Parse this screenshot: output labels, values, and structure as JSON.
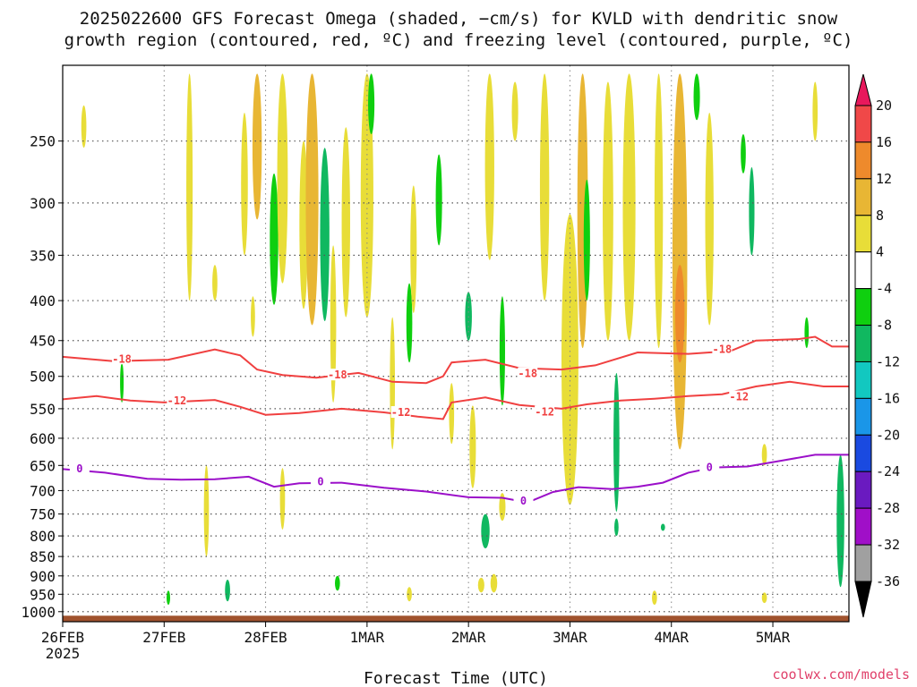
{
  "title_line1": "2025022600 GFS Forecast Omega (shaded, −cm/s) for KVLD with dendritic snow",
  "title_line2": "growth region (contoured, red, ºC) and freezing level (contoured, purple, ºC)",
  "xlabel": "Forecast Time (UTC)",
  "credit": "coolwx.com/models",
  "colors": {
    "ground": "#a0522d",
    "dgz": "#f04040",
    "freezing": "#9b0fc9",
    "grid": "#555555"
  },
  "chart_data": {
    "type": "heatmap",
    "x_ticks": [
      {
        "label": "26FEB",
        "sub": "2025",
        "t": 0
      },
      {
        "label": "27FEB",
        "t": 24
      },
      {
        "label": "28FEB",
        "t": 48
      },
      {
        "label": "1MAR",
        "t": 72
      },
      {
        "label": "2MAR",
        "t": 96
      },
      {
        "label": "3MAR",
        "t": 120
      },
      {
        "label": "4MAR",
        "t": 144
      },
      {
        "label": "5MAR",
        "t": 168
      }
    ],
    "x_range_hours": [
      0,
      186
    ],
    "y_ticks": [
      250,
      300,
      350,
      400,
      450,
      500,
      550,
      600,
      650,
      700,
      750,
      800,
      850,
      900,
      950,
      1000
    ],
    "y_range_hPa": [
      200,
      1030
    ],
    "y_scale": "log",
    "colorbar": {
      "labels": [
        "20",
        "16",
        "12",
        "8",
        "4",
        "-4",
        "-8",
        "-12",
        "-16",
        "-20",
        "-24",
        "-28",
        "-32",
        "-36"
      ],
      "colors": [
        "#e8185c",
        "#f04848",
        "#ee8a2c",
        "#e8b634",
        "#e8dd38",
        "#ffffff",
        "#0fcf0f",
        "#10b860",
        "#12c8c0",
        "#1a96e8",
        "#1a4ae0",
        "#6a1ac0",
        "#a00fc8",
        "#a0a0a0",
        "#000000"
      ]
    },
    "omega_blobs": [
      {
        "t": 5,
        "p": 240,
        "w": 1.2,
        "h": 30,
        "v": 6
      },
      {
        "t": 30,
        "p": 280,
        "w": 1.5,
        "h": 240,
        "v": 6
      },
      {
        "t": 36,
        "p": 380,
        "w": 1.2,
        "h": 40,
        "v": 6
      },
      {
        "t": 43,
        "p": 290,
        "w": 1.6,
        "h": 120,
        "v": 6
      },
      {
        "t": 45,
        "p": 420,
        "w": 1,
        "h": 50,
        "v": 6
      },
      {
        "t": 46,
        "p": 260,
        "w": 2.2,
        "h": 110,
        "v": 9
      },
      {
        "t": 50,
        "p": 340,
        "w": 2,
        "h": 130,
        "v": -6
      },
      {
        "t": 52,
        "p": 280,
        "w": 2.5,
        "h": 200,
        "v": 6
      },
      {
        "t": 52,
        "p": 720,
        "w": 1.2,
        "h": 130,
        "v": 6
      },
      {
        "t": 57,
        "p": 330,
        "w": 2,
        "h": 160,
        "v": 6
      },
      {
        "t": 59,
        "p": 300,
        "w": 3,
        "h": 260,
        "v": 8
      },
      {
        "t": 62,
        "p": 340,
        "w": 2.2,
        "h": 170,
        "v": -9
      },
      {
        "t": 64,
        "p": 440,
        "w": 1.4,
        "h": 200,
        "v": 6
      },
      {
        "t": 67,
        "p": 330,
        "w": 2,
        "h": 180,
        "v": 6
      },
      {
        "t": 72,
        "p": 290,
        "w": 3,
        "h": 260,
        "v": 6
      },
      {
        "t": 73,
        "p": 225,
        "w": 1.5,
        "h": 40,
        "v": -6
      },
      {
        "t": 78,
        "p": 520,
        "w": 1.2,
        "h": 200,
        "v": 6
      },
      {
        "t": 82,
        "p": 430,
        "w": 1.4,
        "h": 100,
        "v": -6
      },
      {
        "t": 83,
        "p": 350,
        "w": 1.5,
        "h": 130,
        "v": 6
      },
      {
        "t": 89,
        "p": 300,
        "w": 1.5,
        "h": 80,
        "v": -6
      },
      {
        "t": 92,
        "p": 560,
        "w": 1.2,
        "h": 100,
        "v": 6
      },
      {
        "t": 96,
        "p": 420,
        "w": 1.6,
        "h": 60,
        "v": -8
      },
      {
        "t": 97,
        "p": 620,
        "w": 1.5,
        "h": 150,
        "v": 6
      },
      {
        "t": 100,
        "p": 790,
        "w": 2,
        "h": 80,
        "v": -9
      },
      {
        "t": 99,
        "p": 925,
        "w": 1.5,
        "h": 40,
        "v": 6
      },
      {
        "t": 102,
        "p": 920,
        "w": 1.6,
        "h": 50,
        "v": 7
      },
      {
        "t": 101,
        "p": 280,
        "w": 2.2,
        "h": 150,
        "v": 6
      },
      {
        "t": 104,
        "p": 735,
        "w": 1.5,
        "h": 60,
        "v": 6
      },
      {
        "t": 104,
        "p": 470,
        "w": 1.3,
        "h": 150,
        "v": -7
      },
      {
        "t": 107,
        "p": 230,
        "w": 1.5,
        "h": 40,
        "v": 6
      },
      {
        "t": 114,
        "p": 300,
        "w": 2.2,
        "h": 200,
        "v": 6
      },
      {
        "t": 120,
        "p": 520,
        "w": 4,
        "h": 420,
        "v": 7
      },
      {
        "t": 123,
        "p": 320,
        "w": 2.5,
        "h": 280,
        "v": 10
      },
      {
        "t": 124,
        "p": 340,
        "w": 1.5,
        "h": 120,
        "v": -6
      },
      {
        "t": 129,
        "p": 330,
        "w": 2.5,
        "h": 240,
        "v": 6
      },
      {
        "t": 131,
        "p": 620,
        "w": 1.4,
        "h": 250,
        "v": -8
      },
      {
        "t": 134,
        "p": 300,
        "w": 3,
        "h": 300,
        "v": 6
      },
      {
        "t": 141,
        "p": 320,
        "w": 2,
        "h": 280,
        "v": 6
      },
      {
        "t": 146,
        "p": 380,
        "w": 3.5,
        "h": 480,
        "v": 8
      },
      {
        "t": 146,
        "p": 420,
        "w": 2.2,
        "h": 120,
        "v": 13
      },
      {
        "t": 150,
        "p": 220,
        "w": 1.5,
        "h": 30,
        "v": -6
      },
      {
        "t": 153,
        "p": 330,
        "w": 2,
        "h": 200,
        "v": 6
      },
      {
        "t": 161,
        "p": 260,
        "w": 1.2,
        "h": 30,
        "v": -7
      },
      {
        "t": 163,
        "p": 310,
        "w": 1.3,
        "h": 80,
        "v": -8
      },
      {
        "t": 166,
        "p": 630,
        "w": 1.2,
        "h": 40,
        "v": 6
      },
      {
        "t": 166,
        "p": 960,
        "w": 1.2,
        "h": 30,
        "v": 6
      },
      {
        "t": 176,
        "p": 440,
        "w": 1,
        "h": 40,
        "v": -6
      },
      {
        "t": 178,
        "p": 230,
        "w": 1.2,
        "h": 40,
        "v": 6
      },
      {
        "t": 184,
        "p": 780,
        "w": 1.8,
        "h": 300,
        "v": -10
      },
      {
        "t": 34,
        "p": 750,
        "w": 1.2,
        "h": 200,
        "v": 6
      },
      {
        "t": 25,
        "p": 960,
        "w": 0.8,
        "h": 40,
        "v": -6
      },
      {
        "t": 39,
        "p": 940,
        "w": 1.2,
        "h": 60,
        "v": -8
      },
      {
        "t": 65,
        "p": 920,
        "w": 1.2,
        "h": 40,
        "v": -6
      },
      {
        "t": 82,
        "p": 950,
        "w": 1.2,
        "h": 40,
        "v": 6
      },
      {
        "t": 140,
        "p": 960,
        "w": 1.2,
        "h": 40,
        "v": 6
      },
      {
        "t": 142,
        "p": 780,
        "w": 1,
        "h": 15,
        "v": -8
      },
      {
        "t": 131,
        "p": 780,
        "w": 1,
        "h": 40,
        "v": -8
      },
      {
        "t": 14,
        "p": 510,
        "w": 0.8,
        "h": 60,
        "v": -6
      }
    ],
    "dgz_contours": [
      {
        "label": "-18",
        "label_at": [
          [
            14,
            475
          ],
          [
            65,
            498
          ],
          [
            110,
            496
          ],
          [
            156,
            462
          ]
        ],
        "points": [
          [
            0,
            472
          ],
          [
            12,
            478
          ],
          [
            25,
            476
          ],
          [
            36,
            462
          ],
          [
            42,
            470
          ],
          [
            46,
            490
          ],
          [
            52,
            498
          ],
          [
            60,
            502
          ],
          [
            70,
            495
          ],
          [
            78,
            508
          ],
          [
            86,
            510
          ],
          [
            90,
            500
          ],
          [
            92,
            480
          ],
          [
            100,
            476
          ],
          [
            108,
            488
          ],
          [
            118,
            490
          ],
          [
            126,
            484
          ],
          [
            136,
            466
          ],
          [
            148,
            468
          ],
          [
            158,
            464
          ],
          [
            164,
            450
          ],
          [
            174,
            448
          ],
          [
            178,
            445
          ],
          [
            182,
            458
          ],
          [
            186,
            458
          ]
        ]
      },
      {
        "label": "-12",
        "label_at": [
          [
            27,
            537
          ],
          [
            80,
            556
          ],
          [
            114,
            555
          ],
          [
            160,
            531
          ]
        ],
        "points": [
          [
            0,
            535
          ],
          [
            8,
            530
          ],
          [
            16,
            537
          ],
          [
            24,
            540
          ],
          [
            36,
            536
          ],
          [
            42,
            547
          ],
          [
            48,
            560
          ],
          [
            56,
            557
          ],
          [
            66,
            550
          ],
          [
            76,
            556
          ],
          [
            84,
            563
          ],
          [
            90,
            567
          ],
          [
            92,
            540
          ],
          [
            100,
            532
          ],
          [
            108,
            544
          ],
          [
            118,
            550
          ],
          [
            124,
            543
          ],
          [
            132,
            537
          ],
          [
            140,
            534
          ],
          [
            148,
            530
          ],
          [
            156,
            527
          ],
          [
            164,
            515
          ],
          [
            172,
            508
          ],
          [
            180,
            515
          ],
          [
            186,
            515
          ]
        ]
      }
    ],
    "freezing_contour": {
      "label": "0",
      "label_at": [
        [
          4,
          656
        ],
        [
          61,
          682
        ],
        [
          109,
          722
        ],
        [
          153,
          654
        ]
      ],
      "points": [
        [
          0,
          657
        ],
        [
          10,
          664
        ],
        [
          20,
          676
        ],
        [
          28,
          678
        ],
        [
          36,
          677
        ],
        [
          44,
          672
        ],
        [
          50,
          692
        ],
        [
          56,
          685
        ],
        [
          66,
          684
        ],
        [
          76,
          694
        ],
        [
          86,
          702
        ],
        [
          96,
          714
        ],
        [
          104,
          715
        ],
        [
          110,
          725
        ],
        [
          116,
          703
        ],
        [
          122,
          693
        ],
        [
          130,
          697
        ],
        [
          136,
          692
        ],
        [
          142,
          684
        ],
        [
          148,
          664
        ],
        [
          154,
          654
        ],
        [
          162,
          652
        ],
        [
          170,
          641
        ],
        [
          178,
          630
        ],
        [
          186,
          630
        ]
      ]
    }
  }
}
